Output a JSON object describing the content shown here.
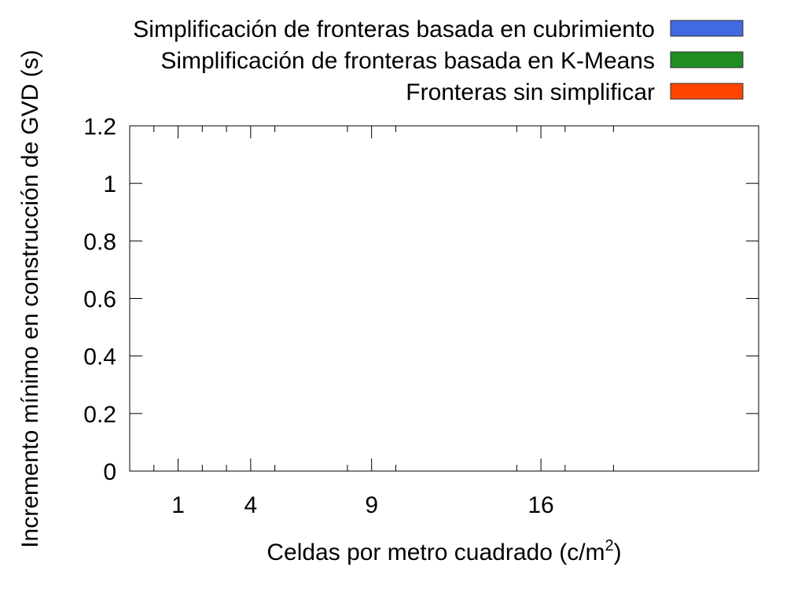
{
  "chart_data": {
    "type": "bar",
    "title": "",
    "xlabel_prefix": "Celdas por metro cuadrado (c/m",
    "xlabel_superscript": "2",
    "xlabel_suffix": ")",
    "ylabel": "Incremento mínimo en construcción de GVD (s)",
    "xlim": [
      -1,
      25
    ],
    "ylim": [
      0,
      1.2
    ],
    "x_ticks": [
      1,
      4,
      9,
      16
    ],
    "x_tick_labels": [
      "1",
      "4",
      "9",
      "16"
    ],
    "x_minor_ticks": [
      0,
      2,
      3,
      5,
      8,
      10,
      15,
      17,
      19
    ],
    "y_ticks": [
      0,
      0.2,
      0.4,
      0.6,
      0.8,
      1.0,
      1.2
    ],
    "y_tick_labels": [
      "0",
      "0.2",
      "0.4",
      "0.6",
      "0.8",
      "1",
      "1.2"
    ],
    "legend_position": "top-right (outside plot)",
    "series": [
      {
        "name": "Simplificación de fronteras basada en cubrimiento",
        "color": "#4169E1",
        "values": []
      },
      {
        "name": "Simplificación de fronteras basada en K-Means",
        "color": "#228B22",
        "values": []
      },
      {
        "name": "Fronteras sin simplificar",
        "color": "#FF4500",
        "values": []
      }
    ],
    "grid": false
  }
}
